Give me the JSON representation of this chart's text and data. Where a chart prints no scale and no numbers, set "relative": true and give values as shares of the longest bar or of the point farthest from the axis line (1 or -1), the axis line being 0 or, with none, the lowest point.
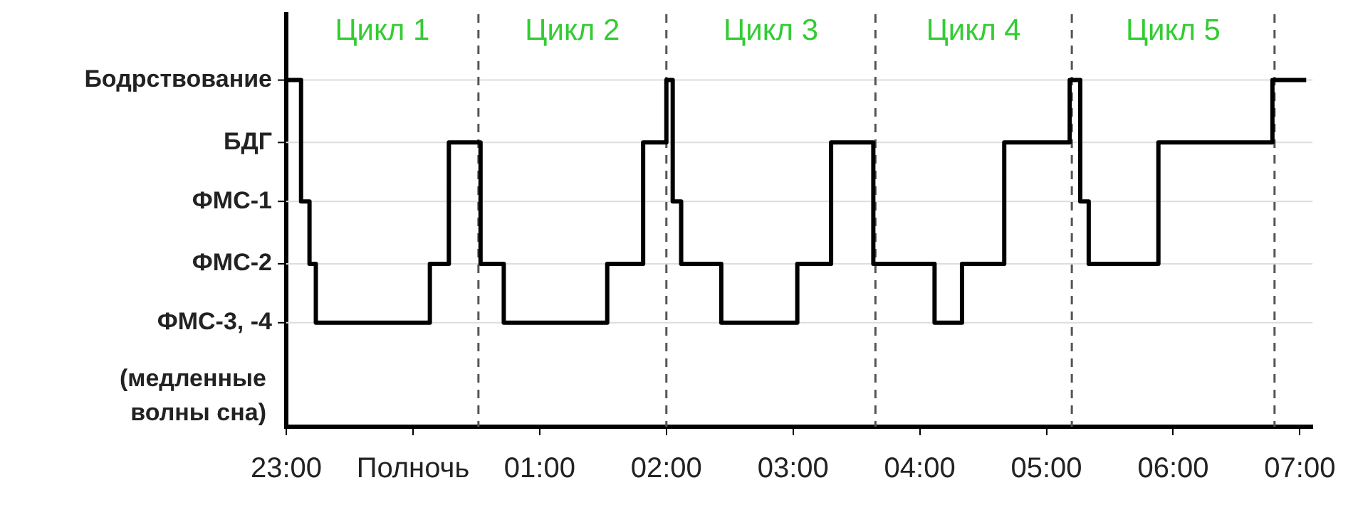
{
  "chart_data": {
    "type": "step",
    "relative": true,
    "x": [
      "2000-01-01T23:00",
      "2000-01-01T23:07",
      "2000-01-01T23:11",
      "2000-01-01T23:14",
      "2000-01-02T00:08",
      "2000-01-02T00:17",
      "2000-01-02T00:32",
      "2000-01-02T00:43",
      "2000-01-02T01:32",
      "2000-01-02T01:49",
      "2000-01-02T02:00",
      "2000-01-02T02:03",
      "2000-01-02T02:07",
      "2000-01-02T02:26",
      "2000-01-02T03:02",
      "2000-01-02T03:18",
      "2000-01-02T03:38",
      "2000-01-02T04:07",
      "2000-01-02T04:20",
      "2000-01-02T04:40",
      "2000-01-02T05:11",
      "2000-01-02T05:16",
      "2000-01-02T05:20",
      "2000-01-02T05:53",
      "2000-01-02T06:47",
      "2000-01-02T07:03"
    ],
    "series": [
      {
        "color": "#000000",
        "values": [
          1,
          0.65,
          0.47,
          0.3,
          0.47,
          0.82,
          0.47,
          0.3,
          0.47,
          0.82,
          1,
          0.65,
          0.47,
          0.3,
          0.47,
          0.82,
          0.47,
          0.3,
          0.47,
          0.82,
          1,
          0.65,
          0.47,
          0.82,
          1,
          1
        ]
      }
    ],
    "xlim": [
      "2000-01-01T23:00",
      "2000-01-02T07:06"
    ],
    "xticks": [
      {
        "value": "2000-01-01T23:00",
        "label": "23:00"
      },
      {
        "value": "2000-01-02T00:00",
        "label": "Полночь"
      },
      {
        "value": "2000-01-02T01:00",
        "label": "01:00"
      },
      {
        "value": "2000-01-02T02:00",
        "label": "02:00"
      },
      {
        "value": "2000-01-02T03:00",
        "label": "03:00"
      },
      {
        "value": "2000-01-02T04:00",
        "label": "04:00"
      },
      {
        "value": "2000-01-02T05:00",
        "label": "05:00"
      },
      {
        "value": "2000-01-02T06:00",
        "label": "06:00"
      },
      {
        "value": "2000-01-02T07:00",
        "label": "07:00"
      }
    ],
    "ref_lines": [
      {
        "axis": "x",
        "value": "2000-01-02T00:31",
        "line_style": "dashed",
        "color": "#555555"
      },
      {
        "axis": "x",
        "value": "2000-01-02T02:00",
        "line_style": "dashed",
        "color": "#555555"
      },
      {
        "axis": "x",
        "value": "2000-01-02T03:39",
        "line_style": "dashed",
        "color": "#555555"
      },
      {
        "axis": "x",
        "value": "2000-01-02T05:12",
        "line_style": "dashed",
        "color": "#555555"
      },
      {
        "axis": "x",
        "value": "2000-01-02T06:48",
        "line_style": "dashed",
        "color": "#555555"
      }
    ],
    "annotations": [
      "Цикл 1",
      "Цикл 2",
      "Цикл 3",
      "Цикл 4",
      "Цикл 5",
      "Бодрствование",
      "БДГ",
      "ФМС-1",
      "ФМС-2",
      "ФМС-3, -4",
      "(медленные волны сна)"
    ],
    "grid": "y",
    "marker": "none",
    "line_style": "solid",
    "legend": false
  }
}
